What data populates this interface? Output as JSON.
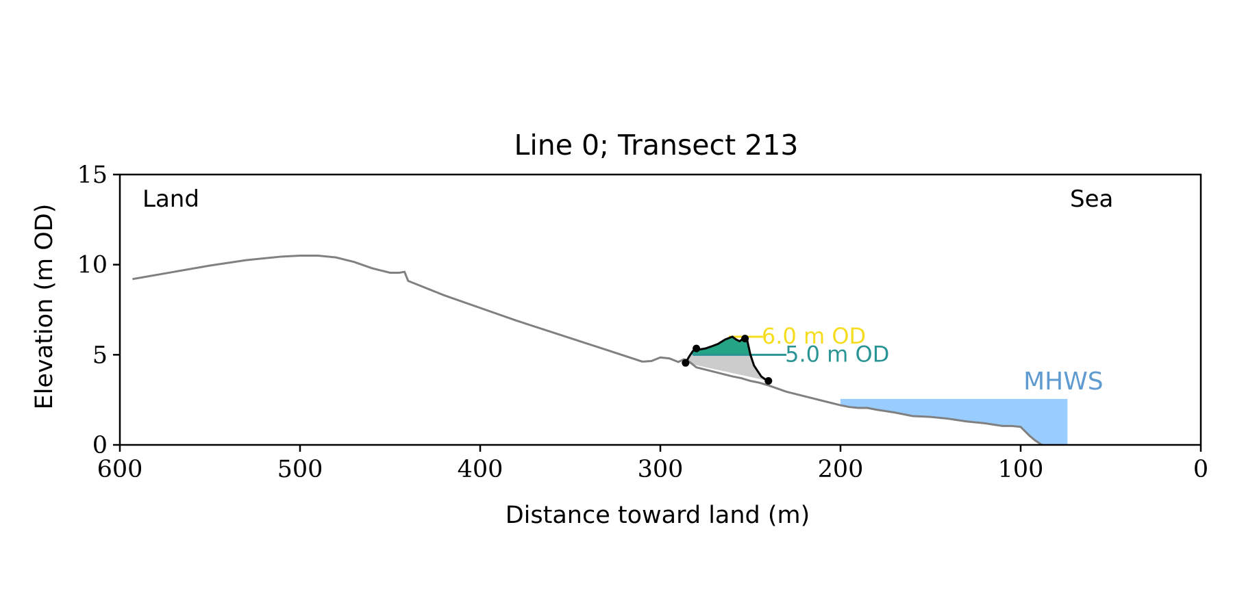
{
  "chart_data": {
    "type": "area",
    "title": "Line 0; Transect 213",
    "xlabel": "Distance toward land (m)",
    "ylabel": "Elevation (m OD)",
    "xlim": [
      600,
      0
    ],
    "ylim": [
      0,
      15
    ],
    "xticks": [
      600,
      500,
      400,
      300,
      200,
      100,
      0
    ],
    "yticks": [
      0,
      5,
      10,
      15
    ],
    "grid": false,
    "annotations": {
      "land": "Land",
      "sea": "Sea"
    },
    "colors": {
      "profile": "#808080",
      "dune": "#26a586",
      "dune_base": "#cccccc",
      "mhws_fill": "#99ccff",
      "mhws_text": "#5f9bd0",
      "od6": "#f5dd1e",
      "od5": "#2a9494"
    },
    "profile": {
      "x": [
        593,
        570,
        550,
        530,
        510,
        500,
        490,
        480,
        470,
        460,
        450,
        445,
        442,
        440,
        420,
        400,
        380,
        360,
        340,
        320,
        310,
        305,
        300,
        295,
        290,
        287,
        285,
        280,
        270,
        260,
        255,
        250,
        245,
        240,
        230,
        220,
        210,
        200,
        195,
        190,
        185,
        180,
        170,
        160,
        150,
        140,
        130,
        120,
        110,
        105,
        100,
        98,
        95,
        92,
        89,
        88
      ],
      "y": [
        9.2,
        9.6,
        9.95,
        10.25,
        10.45,
        10.5,
        10.5,
        10.4,
        10.15,
        9.8,
        9.55,
        9.55,
        9.6,
        9.1,
        8.3,
        7.6,
        6.9,
        6.25,
        5.6,
        4.95,
        4.62,
        4.65,
        4.85,
        4.8,
        4.6,
        4.75,
        4.7,
        4.3,
        4.05,
        3.8,
        3.7,
        3.55,
        3.45,
        3.3,
        2.95,
        2.7,
        2.45,
        2.2,
        2.1,
        2.05,
        2.05,
        1.95,
        1.8,
        1.6,
        1.55,
        1.45,
        1.3,
        1.2,
        1.05,
        1.05,
        1.0,
        0.8,
        0.5,
        0.25,
        0.05,
        0.0
      ]
    },
    "dune": {
      "x": [
        286,
        284,
        282,
        280,
        278,
        275,
        272,
        268,
        264,
        260,
        258,
        256,
        254,
        252,
        250,
        248,
        246,
        244,
        242,
        240
      ],
      "y": [
        4.55,
        4.9,
        5.2,
        5.35,
        5.3,
        5.35,
        5.45,
        5.6,
        5.85,
        6.0,
        5.85,
        5.75,
        5.9,
        5.9,
        5.0,
        4.4,
        4.1,
        3.8,
        3.65,
        3.55
      ]
    },
    "dune_points": {
      "x": [
        286,
        280,
        253,
        240
      ],
      "y": [
        4.55,
        5.35,
        5.9,
        3.55
      ]
    },
    "mhws": {
      "label": "MHWS",
      "level": 2.55,
      "x_from": 200,
      "x_to": 74
    },
    "od_lines": [
      {
        "label": "6.0 m OD",
        "elevation": 6.0,
        "x_from": 262,
        "x_to": 243
      },
      {
        "label": "5.0 m OD",
        "elevation": 5.0,
        "x_from": 282,
        "x_to": 230
      }
    ]
  }
}
